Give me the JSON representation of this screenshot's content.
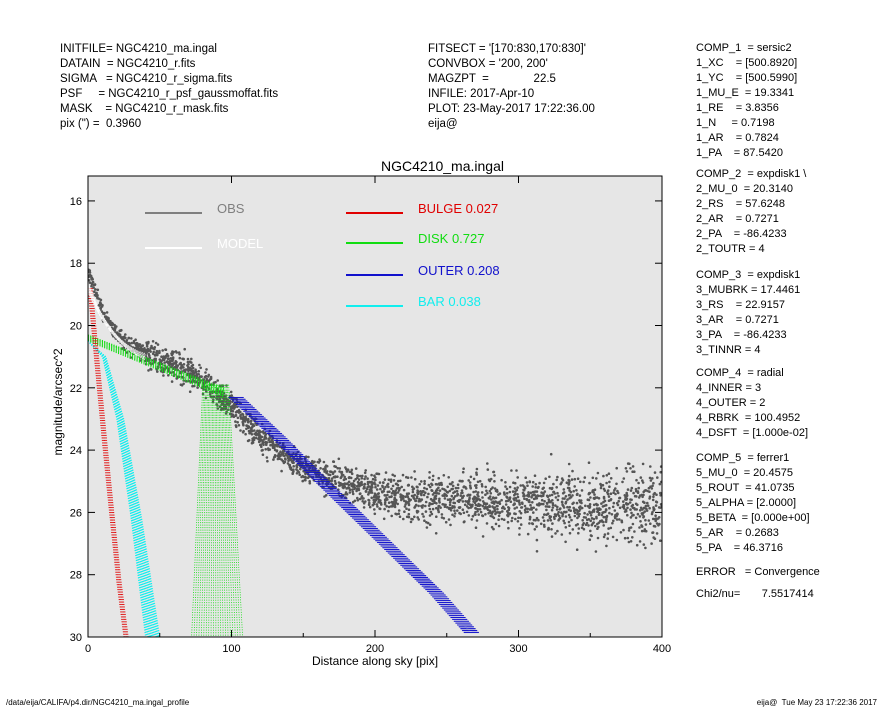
{
  "header_left": [
    "INITFILE= NGC4210_ma.ingal",
    "DATAIN  = NGC4210_r.fits",
    "SIGMA   = NGC4210_r_sigma.fits",
    "PSF     = NGC4210_r_psf_gaussmoffat.fits",
    "MASK    = NGC4210_r_mask.fits",
    "pix (\") =  0.3960"
  ],
  "header_mid": [
    "FITSECT = '[170:830,170:830]'",
    "CONVBOX = '200, 200'",
    "MAGZPT  =              22.5",
    "INFILE: 2017-Apr-10",
    "PLOT: 23-May-2017 17:22:36.00",
    "eija@"
  ],
  "components": [
    [
      "COMP_1  = sersic2",
      "1_XC    = [500.8920]",
      "1_YC    = [500.5990]",
      "1_MU_E  = 19.3341",
      "1_RE    = 3.8356",
      "1_N     = 0.7198",
      "1_AR    = 0.7824",
      "1_PA    = 87.5420"
    ],
    [
      "COMP_2  = expdisk1 \\",
      "2_MU_0  = 20.3140",
      "2_RS    = 57.6248",
      "2_AR    = 0.7271",
      "2_PA    = -86.4233",
      "2_TOUTR = 4"
    ],
    [
      "COMP_3  = expdisk1",
      "3_MUBRK = 17.4461",
      "3_RS    = 22.9157",
      "3_AR    = 0.7271",
      "3_PA    = -86.4233",
      "3_TINNR = 4"
    ],
    [
      "COMP_4  = radial",
      "4_INNER = 3",
      "4_OUTER = 2",
      "4_RBRK  = 100.4952",
      "4_DSFT  = [1.000e-02]"
    ],
    [
      "COMP_5  = ferrer1",
      "5_MU_0  = 20.4575",
      "5_ROUT  = 41.0735",
      "5_ALPHA = [2.0000]",
      "5_BETA  = [0.000e+00]",
      "5_AR    = 0.2683",
      "5_PA    = 46.3716"
    ],
    [
      "ERROR   = Convergence"
    ],
    [
      "Chi2/nu=       7.5517414"
    ]
  ],
  "footer_left": "/data/eija/CALIFA/p4.dir/NGC4210_ma.ingal_profile",
  "footer_right": "eija@  Tue May 23 17:22:36 2017",
  "chart_data": {
    "type": "scatter",
    "title": "NGC4210_ma.ingal",
    "xlabel": "Distance along sky [pix]",
    "ylabel": "magnitude/arcsec^2",
    "xlim": [
      0,
      400
    ],
    "ylim": [
      30,
      15.2
    ],
    "y_inverted": true,
    "xticks": [
      0,
      100,
      200,
      300,
      400
    ],
    "yticks": [
      16,
      18,
      20,
      22,
      24,
      26,
      28,
      30
    ],
    "background": "#e6e6e6",
    "grid": false,
    "legend": [
      {
        "name": "OBS",
        "color": "#7f7f7f"
      },
      {
        "name": "MODEL",
        "color": "#ffffff"
      },
      {
        "name": "BULGE",
        "value": "0.027",
        "color": "#e00000"
      },
      {
        "name": "DISK",
        "value": "0.727",
        "color": "#11dd11"
      },
      {
        "name": "OUTER",
        "value": "0.208",
        "color": "#1111cc"
      },
      {
        "name": "BAR",
        "value": "0.038",
        "color": "#11eeee"
      }
    ],
    "series": [
      {
        "name": "OBS",
        "x": [
          0,
          10,
          20,
          30,
          40,
          50,
          60,
          70,
          80,
          90,
          100,
          110,
          120,
          150,
          200,
          250,
          300,
          350,
          400
        ],
        "y": [
          18.2,
          19.6,
          20.3,
          20.7,
          20.9,
          21.1,
          21.3,
          21.5,
          21.8,
          22.2,
          22.6,
          23.1,
          23.6,
          24.6,
          25.4,
          25.6,
          25.7,
          25.8,
          25.8
        ]
      },
      {
        "name": "BULGE",
        "x": [
          0,
          5,
          10,
          15,
          20,
          25
        ],
        "y": [
          18.8,
          21.3,
          23.7,
          26.0,
          28.2,
          30.0
        ]
      },
      {
        "name": "DISK",
        "x": [
          0,
          25,
          50,
          75,
          90,
          100
        ],
        "y": [
          20.3,
          20.8,
          21.2,
          21.7,
          22.0,
          22.2
        ]
      },
      {
        "name": "OUTER",
        "x": [
          100,
          130,
          160,
          200,
          240,
          265
        ],
        "y": [
          22.3,
          23.6,
          25.0,
          26.8,
          28.6,
          29.9
        ]
      },
      {
        "name": "BAR",
        "x": [
          0,
          10,
          20,
          30,
          40
        ],
        "y": [
          20.5,
          21.0,
          23.0,
          26.2,
          30.0
        ]
      }
    ]
  }
}
